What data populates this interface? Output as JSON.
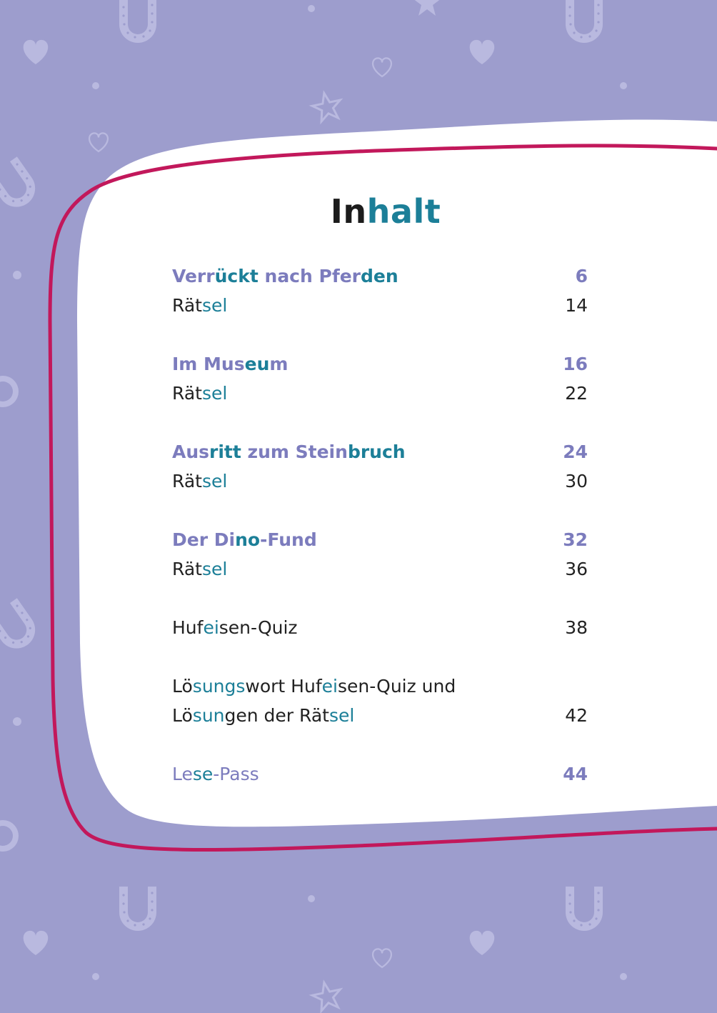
{
  "title": {
    "segments": [
      {
        "text": "In",
        "hl": false
      },
      {
        "text": "halt",
        "hl": true
      }
    ]
  },
  "entries": [
    {
      "kind": "story",
      "segments": [
        {
          "text": "Verr",
          "hl": false
        },
        {
          "text": "ückt",
          "hl": true
        },
        {
          "text": " nach Pfer",
          "hl": false
        },
        {
          "text": "den",
          "hl": true
        }
      ],
      "page": "6"
    },
    {
      "kind": "puzzle",
      "segments": [
        {
          "text": "Rät",
          "hl": false
        },
        {
          "text": "sel",
          "hl": true
        }
      ],
      "page": "14"
    },
    {
      "kind": "story",
      "segments": [
        {
          "text": "Im Mus",
          "hl": false
        },
        {
          "text": "eu",
          "hl": true
        },
        {
          "text": "m",
          "hl": false
        }
      ],
      "page": "16"
    },
    {
      "kind": "puzzle",
      "segments": [
        {
          "text": "Rät",
          "hl": false
        },
        {
          "text": "sel",
          "hl": true
        }
      ],
      "page": "22"
    },
    {
      "kind": "story",
      "segments": [
        {
          "text": "Aus",
          "hl": false
        },
        {
          "text": "ritt",
          "hl": true
        },
        {
          "text": " zum Stein",
          "hl": false
        },
        {
          "text": "bruch",
          "hl": true
        }
      ],
      "page": "24"
    },
    {
      "kind": "puzzle",
      "segments": [
        {
          "text": "Rät",
          "hl": false
        },
        {
          "text": "sel",
          "hl": true
        }
      ],
      "page": "30"
    },
    {
      "kind": "story",
      "segments": [
        {
          "text": "Der Di",
          "hl": false
        },
        {
          "text": "no",
          "hl": true
        },
        {
          "text": "-Fund",
          "hl": false
        }
      ],
      "page": "32"
    },
    {
      "kind": "puzzle",
      "segments": [
        {
          "text": "Rät",
          "hl": false
        },
        {
          "text": "sel",
          "hl": true
        }
      ],
      "page": "36"
    },
    {
      "kind": "plain",
      "segments": [
        {
          "text": "Huf",
          "hl": false
        },
        {
          "text": "ei",
          "hl": true
        },
        {
          "text": "sen-Quiz",
          "hl": false
        }
      ],
      "page": "38"
    },
    {
      "kind": "plain2",
      "segments": [
        {
          "text": "Lö",
          "hl": false
        },
        {
          "text": "sungs",
          "hl": true
        },
        {
          "text": "wort Huf",
          "hl": false
        },
        {
          "text": "ei",
          "hl": true
        },
        {
          "text": "sen-Quiz und",
          "hl": false
        }
      ],
      "segments2": [
        {
          "text": "Lö",
          "hl": false
        },
        {
          "text": "sun",
          "hl": true
        },
        {
          "text": "gen der Rät",
          "hl": false
        },
        {
          "text": "sel",
          "hl": true
        }
      ],
      "page": "42"
    },
    {
      "kind": "pass",
      "segments": [
        {
          "text": "Le",
          "hl": false
        },
        {
          "text": "se",
          "hl": true
        },
        {
          "text": "-Pass",
          "hl": false
        }
      ],
      "page": "44"
    }
  ],
  "colors": {
    "background": "#9d9dcd",
    "card": "#ffffff",
    "border": "#c2185b",
    "accent": "#1c7f98",
    "story": "#7c7cbd",
    "pattern": "#b9b9df"
  },
  "decorations": {
    "icons": [
      "horseshoe-icon",
      "heart-icon",
      "star-icon",
      "sun-icon",
      "dot-icon"
    ]
  }
}
